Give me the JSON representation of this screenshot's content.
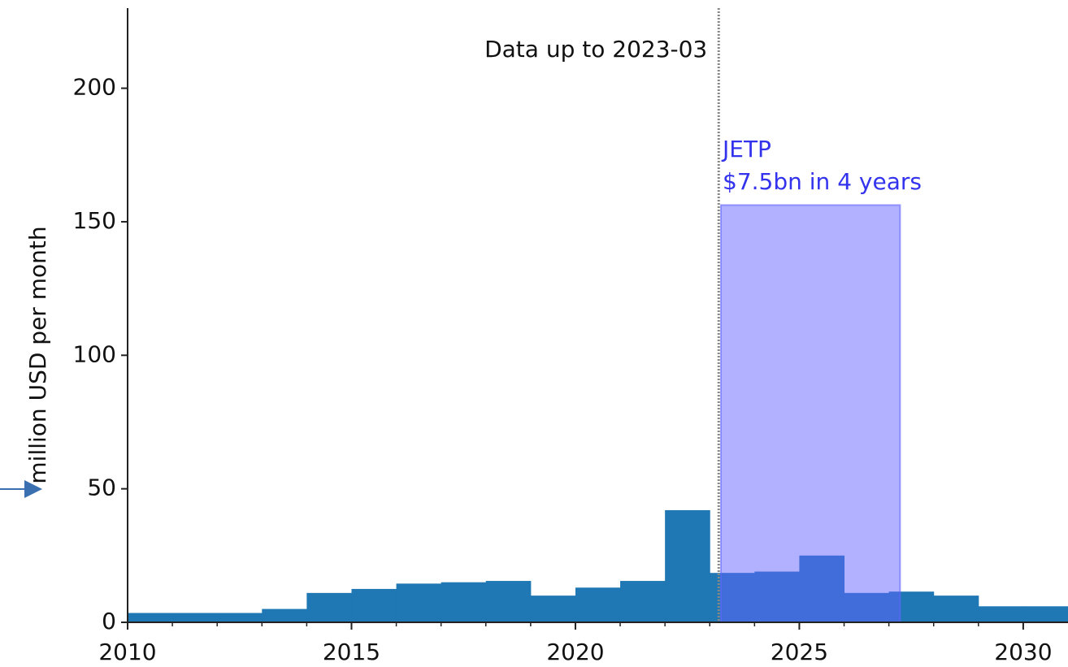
{
  "chart_data": {
    "type": "step-area",
    "y_label": "million USD per month",
    "x": [
      2010,
      2011,
      2012,
      2013,
      2014,
      2015,
      2016,
      2017,
      2018,
      2019,
      2020,
      2021,
      2022,
      2023,
      2024,
      2025,
      2026,
      2027,
      2028,
      2029,
      2030
    ],
    "values": [
      3.5,
      3.5,
      3.5,
      5,
      11,
      12.5,
      14.5,
      15,
      15.5,
      10,
      13,
      15.5,
      42,
      18.5,
      19,
      25,
      11,
      11.5,
      10,
      6,
      6
    ],
    "color": "#1f77b4",
    "xlim": [
      2010,
      2031
    ],
    "ylim": [
      0,
      230
    ],
    "xticks": [
      2010,
      2015,
      2020,
      2025,
      2030
    ],
    "yticks": [
      0,
      50,
      100,
      150,
      200
    ],
    "cutoff": {
      "x": 2023.2,
      "label": "Data up to 2023-03"
    },
    "jetp": {
      "x": [
        2023.25,
        2027.25
      ],
      "value": 156.25,
      "color": "#6464ff",
      "label": "JETP",
      "sublabel": "$7.5bn in 4 years"
    }
  }
}
